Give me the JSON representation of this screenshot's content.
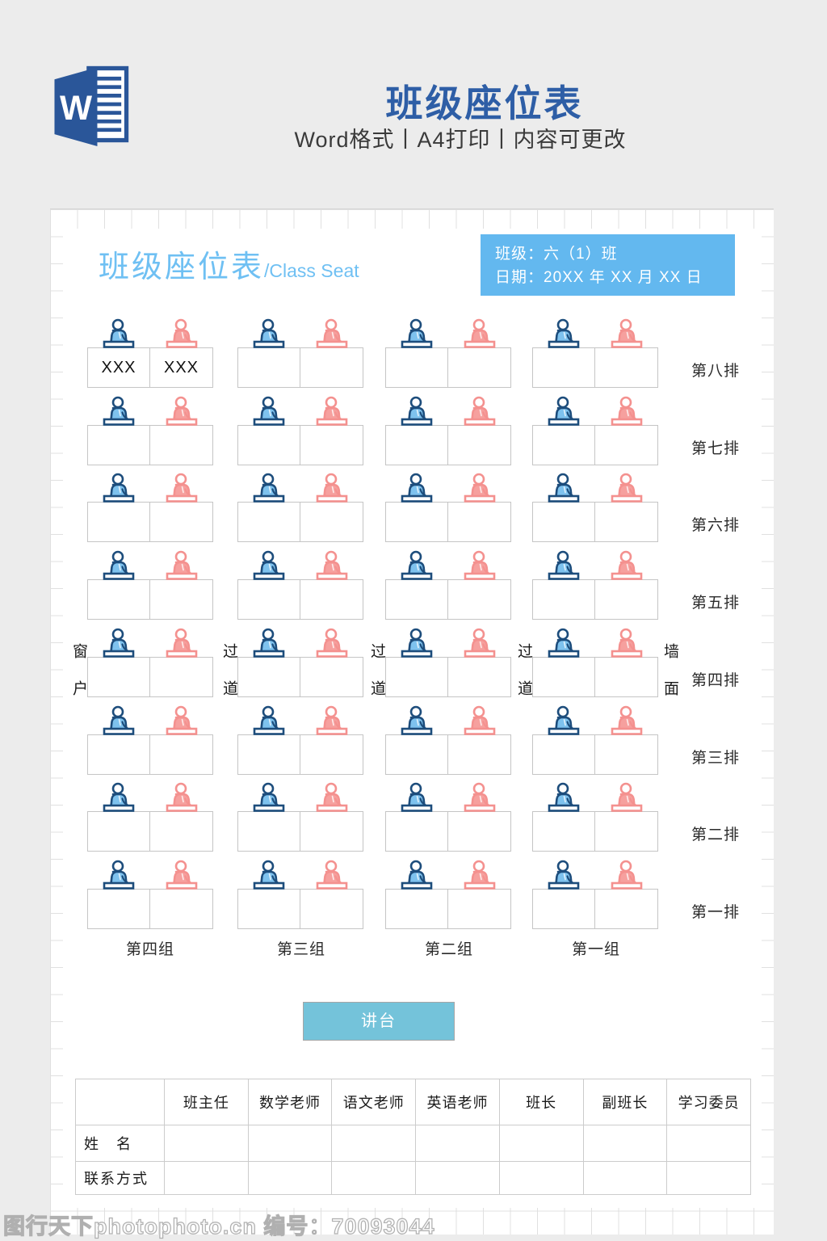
{
  "colors": {
    "header_title_blue": "#2e5ea6",
    "page_title_blue": "#6fc0f3",
    "info_box_blue": "#63b8ef",
    "podium_teal": "#74c3da",
    "seat_blue": "#1d4d7c",
    "seat_pink": "#f4918f"
  },
  "header": {
    "title": "班级座位表",
    "subtitle": "Word格式丨A4打印丨内容可更改"
  },
  "page": {
    "title_cn": "班级座位表",
    "title_en": "/Class Seat",
    "info": {
      "class_line": "班级：六（1）班",
      "date_line": "日期：20XX 年 XX 月 XX 日"
    },
    "side_labels": {
      "window": "窗户",
      "aisles": [
        "过道",
        "过道",
        "过道"
      ],
      "wall": "墙面"
    },
    "rows": [
      {
        "label": "第八排",
        "groups": [
          [
            "XXX",
            "XXX"
          ],
          [
            "",
            ""
          ],
          [
            "",
            ""
          ],
          [
            "",
            ""
          ]
        ]
      },
      {
        "label": "第七排",
        "groups": [
          [
            "",
            ""
          ],
          [
            "",
            ""
          ],
          [
            "",
            ""
          ],
          [
            "",
            ""
          ]
        ]
      },
      {
        "label": "第六排",
        "groups": [
          [
            "",
            ""
          ],
          [
            "",
            ""
          ],
          [
            "",
            ""
          ],
          [
            "",
            ""
          ]
        ]
      },
      {
        "label": "第五排",
        "groups": [
          [
            "",
            ""
          ],
          [
            "",
            ""
          ],
          [
            "",
            ""
          ],
          [
            "",
            ""
          ]
        ]
      },
      {
        "label": "第四排",
        "groups": [
          [
            "",
            ""
          ],
          [
            "",
            ""
          ],
          [
            "",
            ""
          ],
          [
            "",
            ""
          ]
        ]
      },
      {
        "label": "第三排",
        "groups": [
          [
            "",
            ""
          ],
          [
            "",
            ""
          ],
          [
            "",
            ""
          ],
          [
            "",
            ""
          ]
        ]
      },
      {
        "label": "第二排",
        "groups": [
          [
            "",
            ""
          ],
          [
            "",
            ""
          ],
          [
            "",
            ""
          ],
          [
            "",
            ""
          ]
        ]
      },
      {
        "label": "第一排",
        "groups": [
          [
            "",
            ""
          ],
          [
            "",
            ""
          ],
          [
            "",
            ""
          ],
          [
            "",
            ""
          ]
        ]
      }
    ],
    "group_labels": [
      "第四组",
      "第三组",
      "第二组",
      "第一组"
    ],
    "podium": "讲台",
    "contacts_table": {
      "col_headers": [
        "班主任",
        "数学老师",
        "语文老师",
        "英语老师",
        "班长",
        "副班长",
        "学习委员"
      ],
      "row_headers": [
        "姓　名",
        "联系方式"
      ],
      "cells": [
        [
          "",
          "",
          "",
          "",
          "",
          "",
          ""
        ],
        [
          "",
          "",
          "",
          "",
          "",
          "",
          ""
        ]
      ]
    }
  },
  "footer": {
    "watermark": "图行天下photophoto.cn 编号：70093044"
  }
}
